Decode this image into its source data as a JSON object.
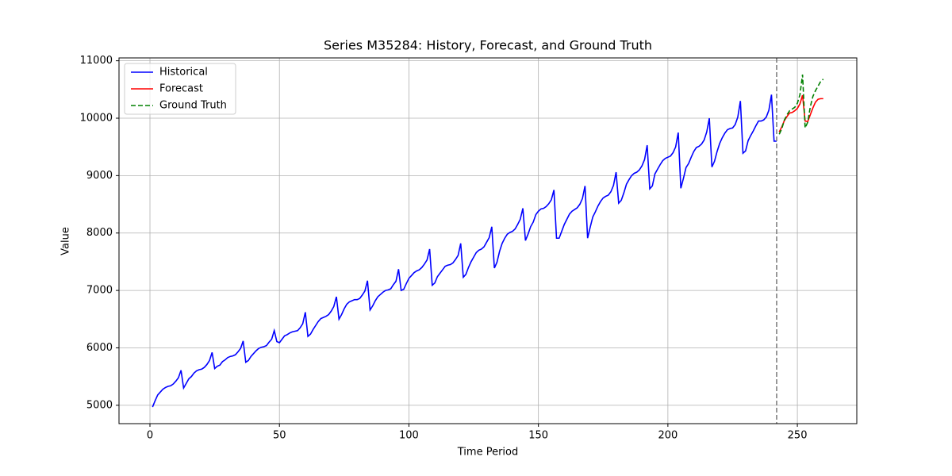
{
  "chart_data": {
    "type": "line",
    "title": "Series M35284: History, Forecast, and Ground Truth",
    "x_label": "Time Period",
    "y_label": "Value",
    "xlim": [
      -11.95,
      272.95
    ],
    "ylim": [
      4680,
      11050
    ],
    "xticks": [
      0,
      50,
      100,
      150,
      200,
      250
    ],
    "yticks": [
      5000,
      6000,
      7000,
      8000,
      9000,
      10000,
      11000
    ],
    "grid": true,
    "legend": "upper left",
    "vlines": [
      242
    ],
    "series": [
      {
        "name": "Historical",
        "color": "#0000ff",
        "dash": "solid",
        "x": [
          1,
          2,
          3,
          4,
          5,
          6,
          7,
          8,
          9,
          10,
          11,
          12,
          13,
          14,
          15,
          16,
          17,
          18,
          19,
          20,
          21,
          22,
          23,
          24,
          25,
          26,
          27,
          28,
          29,
          30,
          31,
          32,
          33,
          34,
          35,
          36,
          37,
          38,
          39,
          40,
          41,
          42,
          43,
          44,
          45,
          46,
          47,
          48,
          49,
          50,
          51,
          52,
          53,
          54,
          55,
          56,
          57,
          58,
          59,
          60,
          61,
          62,
          63,
          64,
          65,
          66,
          67,
          68,
          69,
          70,
          71,
          72,
          73,
          74,
          75,
          76,
          77,
          78,
          79,
          80,
          81,
          82,
          83,
          84,
          85,
          86,
          87,
          88,
          89,
          90,
          91,
          92,
          93,
          94,
          95,
          96,
          97,
          98,
          99,
          100,
          101,
          102,
          103,
          104,
          105,
          106,
          107,
          108,
          109,
          110,
          111,
          112,
          113,
          114,
          115,
          116,
          117,
          118,
          119,
          120,
          121,
          122,
          123,
          124,
          125,
          126,
          127,
          128,
          129,
          130,
          131,
          132,
          133,
          134,
          135,
          136,
          137,
          138,
          139,
          140,
          141,
          142,
          143,
          144,
          145,
          146,
          147,
          148,
          149,
          150,
          151,
          152,
          153,
          154,
          155,
          156,
          157,
          158,
          159,
          160,
          161,
          162,
          163,
          164,
          165,
          166,
          167,
          168,
          169,
          170,
          171,
          172,
          173,
          174,
          175,
          176,
          177,
          178,
          179,
          180,
          181,
          182,
          183,
          184,
          185,
          186,
          187,
          188,
          189,
          190,
          191,
          192,
          193,
          194,
          195,
          196,
          197,
          198,
          199,
          200,
          201,
          202,
          203,
          204,
          205,
          206,
          207,
          208,
          209,
          210,
          211,
          212,
          213,
          214,
          215,
          216,
          217,
          218,
          219,
          220,
          221,
          222,
          223,
          224,
          225,
          226,
          227,
          228,
          229,
          230,
          231,
          232,
          233,
          234,
          235,
          236,
          237,
          238,
          239,
          240,
          241,
          242
        ],
        "values": [
          4970,
          5080,
          5180,
          5230,
          5280,
          5310,
          5330,
          5340,
          5370,
          5420,
          5480,
          5610,
          5300,
          5380,
          5460,
          5500,
          5560,
          5600,
          5620,
          5630,
          5660,
          5710,
          5780,
          5920,
          5640,
          5680,
          5700,
          5760,
          5790,
          5830,
          5850,
          5860,
          5880,
          5930,
          5990,
          6120,
          5750,
          5780,
          5850,
          5900,
          5950,
          5990,
          6010,
          6020,
          6040,
          6100,
          6150,
          6300,
          6110,
          6090,
          6150,
          6210,
          6230,
          6260,
          6280,
          6290,
          6300,
          6350,
          6420,
          6620,
          6200,
          6240,
          6320,
          6390,
          6460,
          6510,
          6530,
          6550,
          6580,
          6640,
          6720,
          6890,
          6500,
          6580,
          6680,
          6760,
          6800,
          6820,
          6840,
          6840,
          6860,
          6920,
          6990,
          7170,
          6660,
          6730,
          6820,
          6890,
          6930,
          6970,
          7000,
          7010,
          7030,
          7100,
          7160,
          7370,
          7000,
          7020,
          7120,
          7210,
          7260,
          7310,
          7340,
          7360,
          7400,
          7460,
          7530,
          7720,
          7090,
          7130,
          7240,
          7300,
          7360,
          7420,
          7440,
          7450,
          7480,
          7540,
          7610,
          7820,
          7230,
          7280,
          7400,
          7500,
          7580,
          7660,
          7700,
          7720,
          7760,
          7840,
          7920,
          8110,
          7390,
          7490,
          7680,
          7820,
          7910,
          7980,
          8010,
          8030,
          8070,
          8150,
          8240,
          8430,
          7870,
          7980,
          8110,
          8190,
          8320,
          8380,
          8420,
          8430,
          8460,
          8510,
          8580,
          8750,
          7910,
          7910,
          8030,
          8150,
          8240,
          8330,
          8380,
          8410,
          8440,
          8500,
          8600,
          8820,
          7910,
          8100,
          8280,
          8370,
          8470,
          8550,
          8610,
          8640,
          8660,
          8720,
          8830,
          9060,
          8520,
          8570,
          8700,
          8850,
          8930,
          9000,
          9040,
          9060,
          9100,
          9170,
          9280,
          9530,
          8770,
          8820,
          9030,
          9110,
          9190,
          9260,
          9300,
          9320,
          9340,
          9400,
          9500,
          9750,
          8780,
          8950,
          9140,
          9210,
          9320,
          9420,
          9490,
          9510,
          9550,
          9620,
          9760,
          10000,
          9150,
          9250,
          9420,
          9560,
          9660,
          9740,
          9800,
          9820,
          9830,
          9890,
          10020,
          10300,
          9390,
          9430,
          9610,
          9700,
          9780,
          9870,
          9950,
          9950,
          9970,
          10020,
          10140,
          10410,
          9600,
          9600
        ]
      },
      {
        "name": "Forecast",
        "color": "#ff0000",
        "dash": "solid",
        "x": [
          243,
          244,
          245,
          246,
          247,
          248,
          249,
          250,
          251,
          252,
          253,
          254,
          255,
          256,
          257,
          258,
          259,
          260
        ],
        "values": [
          9760,
          9850,
          9960,
          10030,
          10090,
          10100,
          10130,
          10170,
          10250,
          10400,
          9950,
          9940,
          10060,
          10180,
          10280,
          10330,
          10340,
          10340
        ]
      },
      {
        "name": "Ground Truth",
        "color": "#008000",
        "dash": "dashed",
        "x": [
          243,
          244,
          245,
          246,
          247,
          248,
          249,
          250,
          251,
          252,
          253,
          254,
          255,
          256,
          257,
          258,
          259,
          260
        ],
        "values": [
          9720,
          9820,
          9970,
          10060,
          10130,
          10160,
          10190,
          10260,
          10410,
          10760,
          9830,
          9930,
          10200,
          10380,
          10480,
          10560,
          10640,
          10680
        ]
      }
    ]
  }
}
